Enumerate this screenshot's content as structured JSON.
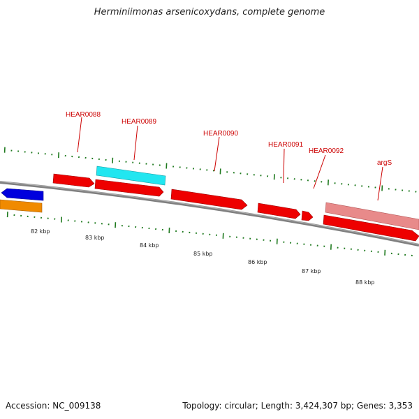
{
  "title": "Herminiimonas arsenicoxydans, complete genome",
  "footer": {
    "accession": "Accession: NC_009138",
    "summary": "Topology: circular; Length: 3,424,307 bp; Genes: 3,353"
  },
  "ruler": {
    "unit": "kbp",
    "labels": [
      "82 kbp",
      "83 kbp",
      "84 kbp",
      "85 kbp",
      "86 kbp",
      "87 kbp",
      "88 kbp"
    ]
  },
  "colors": {
    "backbone": "#808080",
    "tick": "#1f7a1f",
    "label": "#cc0000",
    "gene_red": "#ee0000",
    "gene_cyan": "#22e6f0",
    "gene_pink": "#e88a8a",
    "gene_blue": "#0000dd",
    "gene_orange": "#f08a00"
  },
  "genes": [
    {
      "name": "",
      "strand": "-",
      "track": "inner",
      "color": "gene_blue"
    },
    {
      "name": "",
      "strand": "",
      "track": "inner2",
      "color": "gene_orange"
    },
    {
      "name": "HEAR0088",
      "strand": "+",
      "track": "outer",
      "color": "gene_red"
    },
    {
      "name": "HEAR0089",
      "strand": "",
      "track": "outer2",
      "color": "gene_cyan"
    },
    {
      "name": "",
      "strand": "+",
      "track": "outer",
      "color": "gene_red"
    },
    {
      "name": "HEAR0090",
      "strand": "+",
      "track": "outer",
      "color": "gene_red"
    },
    {
      "name": "HEAR0091",
      "strand": "+",
      "track": "outer",
      "color": "gene_red"
    },
    {
      "name": "HEAR0092",
      "strand": "+",
      "track": "outer",
      "color": "gene_red"
    },
    {
      "name": "argS",
      "strand": "",
      "track": "outer2",
      "color": "gene_pink"
    },
    {
      "name": "",
      "strand": "+",
      "track": "outer",
      "color": "gene_red"
    }
  ]
}
